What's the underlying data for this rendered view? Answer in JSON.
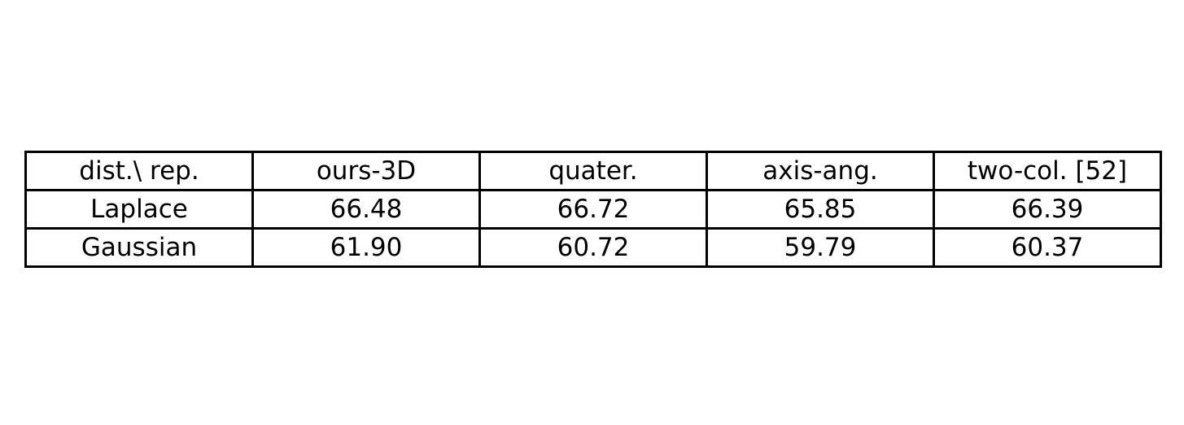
{
  "chart_data": {
    "type": "table",
    "columns": [
      "dist.\\ rep.",
      "ours-3D",
      "quater.",
      "axis-ang.",
      "two-col. [52]"
    ],
    "rows": [
      [
        "Laplace",
        "66.48",
        "66.72",
        "65.85",
        "66.39"
      ],
      [
        "Gaussian",
        "61.90",
        "60.72",
        "59.79",
        "60.37"
      ]
    ]
  }
}
